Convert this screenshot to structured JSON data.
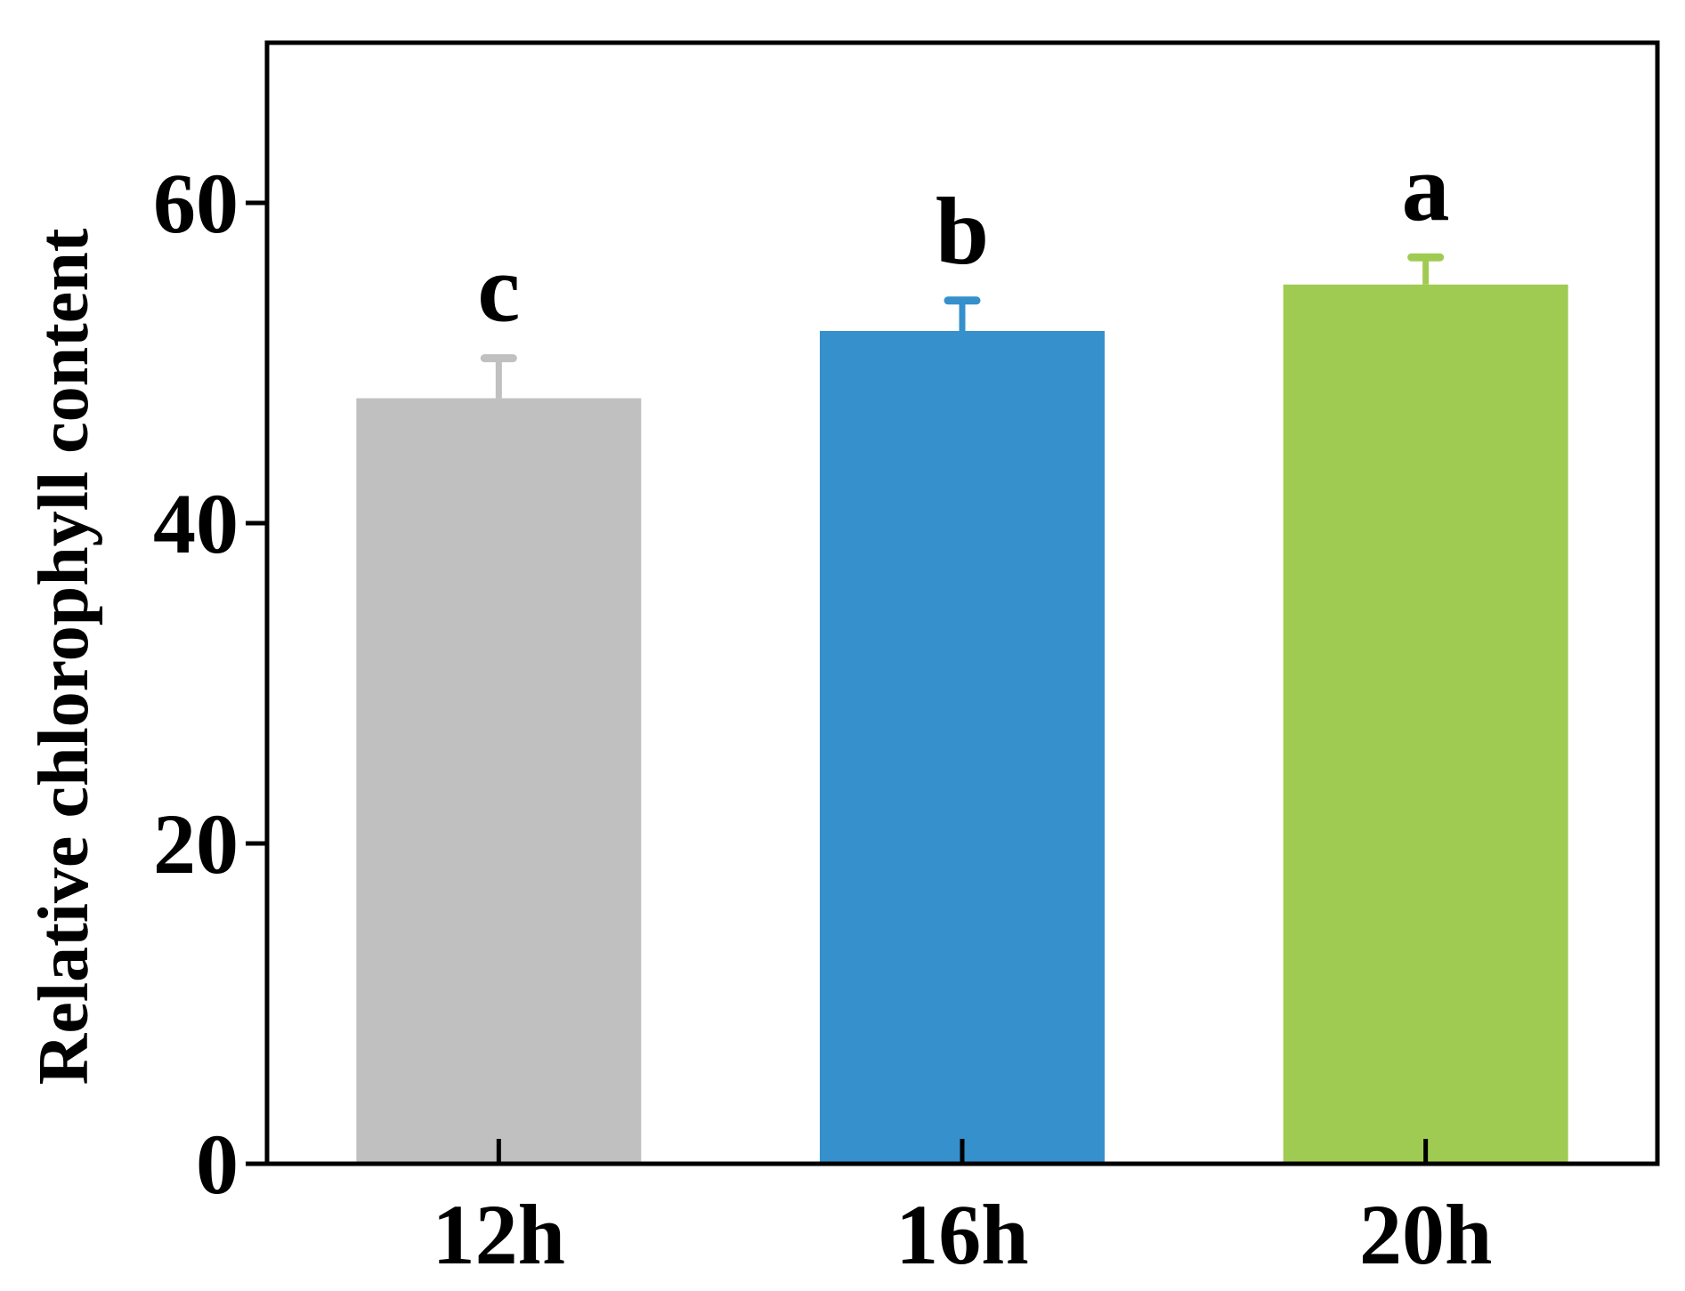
{
  "chart_data": {
    "type": "bar",
    "title": "",
    "xlabel": "",
    "ylabel": "Relative chlorophyll content",
    "ylim": [
      0,
      70
    ],
    "yticks": [
      0,
      20,
      40,
      60
    ],
    "ytick_labels": [
      "0",
      "20",
      "40",
      "60"
    ],
    "categories": [
      "12h",
      "16h",
      "20h"
    ],
    "values": [
      47.8,
      52.0,
      54.9
    ],
    "errors": [
      2.5,
      1.9,
      1.7
    ],
    "significance": [
      "c",
      "b",
      "a"
    ],
    "colors": [
      "#c0c0c0",
      "#3590cc",
      "#a0cb52"
    ],
    "grid": false,
    "legend": "none"
  }
}
